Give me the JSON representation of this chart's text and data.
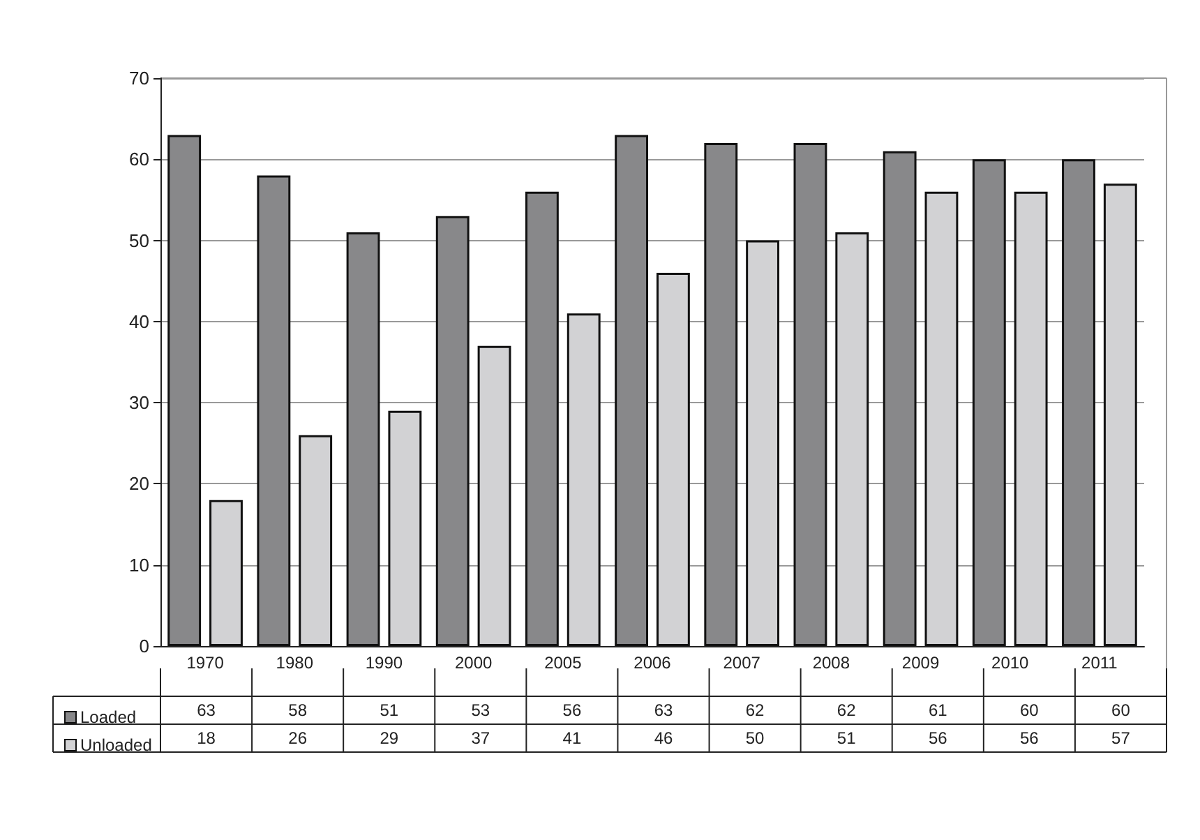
{
  "chart_data": {
    "type": "bar",
    "categories": [
      "1970",
      "1980",
      "1990",
      "2000",
      "2005",
      "2006",
      "2007",
      "2008",
      "2009",
      "2010",
      "2011"
    ],
    "series": [
      {
        "name": "Loaded",
        "color": "#88888a",
        "values": [
          63,
          58,
          51,
          53,
          56,
          63,
          62,
          62,
          61,
          60,
          60
        ]
      },
      {
        "name": "Unloaded",
        "color": "#d2d2d4",
        "values": [
          18,
          26,
          29,
          37,
          41,
          46,
          50,
          51,
          56,
          56,
          57
        ]
      }
    ],
    "ylim": [
      0,
      70
    ],
    "yticks": [
      0,
      10,
      20,
      30,
      40,
      50,
      60,
      70
    ],
    "grid": "y",
    "legend": "bottom left",
    "data_labels": true
  }
}
